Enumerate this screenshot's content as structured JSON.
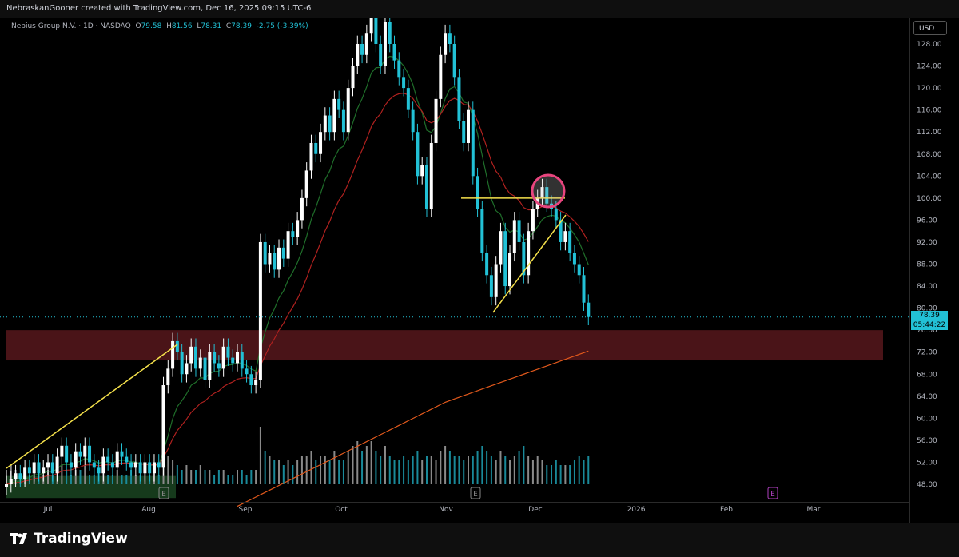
{
  "header": {
    "attribution": "NebraskanGooner created with TradingView.com, Dec 16, 2025 09:15 UTC-6"
  },
  "legend": {
    "symbol": "Nebius Group N.V. · 1D · NASDAQ",
    "open_label": "O",
    "open": "79.58",
    "high_label": "H",
    "high": "81.56",
    "low_label": "L",
    "low": "78.31",
    "close_label": "C",
    "close": "78.39",
    "change": "-2.75 (-3.39%)"
  },
  "currency": "USD",
  "last_price": {
    "price": "78.39",
    "countdown": "05:44:22"
  },
  "colors": {
    "up": "#ffffff",
    "down": "#22c1d6",
    "zone": "#4a1418",
    "drawing": "#f5e14b",
    "circle": "#e8457e",
    "ema_fast": "#1f6e2a",
    "ema_mid": "#b0211f",
    "ma_slow": "#e2591c",
    "earnings": "#b040c0"
  },
  "chart_data": {
    "type": "candlestick",
    "y_ticks": [
      "128.00",
      "124.00",
      "120.00",
      "116.00",
      "112.00",
      "108.00",
      "104.00",
      "100.00",
      "96.00",
      "92.00",
      "88.00",
      "84.00",
      "80.00",
      "76.00",
      "72.00",
      "68.00",
      "64.00",
      "60.00",
      "56.00",
      "52.00",
      "48.00"
    ],
    "ylim": [
      46,
      132
    ],
    "x_ticks": [
      "Jul",
      "Aug",
      "Sep",
      "Oct",
      "Nov",
      "Dec",
      "2026",
      "Feb",
      "Mar"
    ],
    "closes": [
      48,
      49,
      50,
      49,
      51,
      50,
      52,
      50,
      51,
      52,
      50,
      53,
      55,
      52,
      51,
      54,
      53,
      55,
      52,
      51,
      50,
      53,
      52,
      51,
      54,
      53,
      52,
      51,
      52,
      50,
      52,
      50,
      52,
      51,
      66,
      69,
      74,
      72,
      68,
      70,
      73,
      69,
      71,
      67,
      72,
      70,
      69,
      73,
      71,
      70,
      72,
      69,
      68,
      66,
      67,
      92,
      88,
      90,
      87,
      91,
      89,
      94,
      93,
      96,
      100,
      105,
      110,
      108,
      112,
      115,
      112,
      118,
      116,
      112,
      120,
      124,
      128,
      126,
      130,
      134,
      128,
      124,
      132,
      128,
      125,
      122,
      120,
      116,
      112,
      104,
      106,
      98,
      110,
      118,
      126,
      130,
      128,
      122,
      114,
      110,
      116,
      104,
      98,
      90,
      86,
      82,
      88,
      94,
      84,
      90,
      96,
      92,
      86,
      94,
      98,
      100,
      102,
      99,
      98,
      96,
      92,
      94,
      90,
      88,
      86,
      81,
      78.39
    ],
    "volume": [
      3,
      4,
      3,
      2,
      3,
      2,
      4,
      3,
      2,
      3,
      2,
      3,
      4,
      3,
      2,
      3,
      3,
      4,
      2,
      2,
      3,
      3,
      2,
      2,
      3,
      2,
      2,
      3,
      2,
      2,
      3,
      2,
      3,
      2,
      9,
      6,
      5,
      4,
      3,
      4,
      3,
      3,
      4,
      3,
      3,
      2,
      3,
      3,
      2,
      2,
      3,
      3,
      2,
      3,
      3,
      12,
      7,
      6,
      5,
      5,
      4,
      5,
      4,
      5,
      6,
      6,
      7,
      5,
      6,
      6,
      5,
      7,
      5,
      5,
      7,
      8,
      9,
      7,
      8,
      9,
      7,
      6,
      8,
      6,
      5,
      5,
      6,
      5,
      6,
      7,
      5,
      6,
      6,
      5,
      7,
      8,
      7,
      6,
      6,
      5,
      6,
      6,
      7,
      8,
      7,
      6,
      5,
      7,
      6,
      5,
      6,
      7,
      8,
      6,
      5,
      6,
      5,
      4,
      4,
      5,
      4,
      4,
      4,
      5,
      6,
      5,
      6
    ],
    "resistance_zone": [
      70.5,
      76
    ],
    "horizontal_line": 100
  },
  "footer": {
    "brand": "TradingView"
  }
}
